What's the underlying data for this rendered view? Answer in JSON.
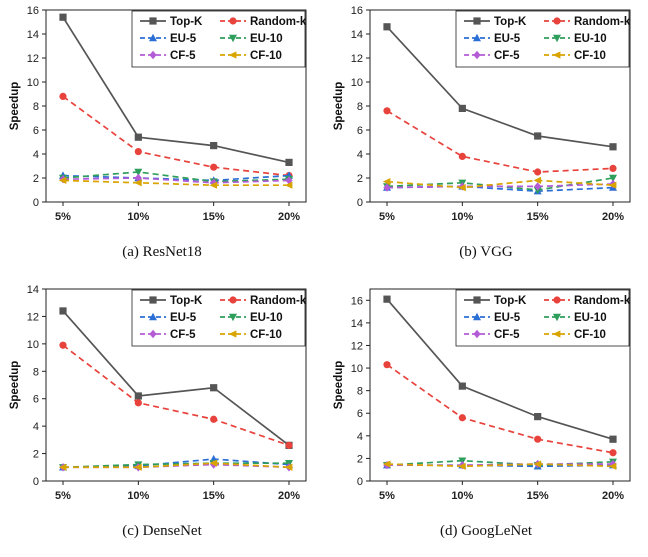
{
  "figure": {
    "captions": [
      "(a) ResNet18",
      "(b) VGG",
      "(c) DenseNet",
      "(d) GoogLeNet"
    ]
  },
  "chart_data": [
    {
      "type": "line",
      "caption": "(a) ResNet18",
      "categories": [
        "5%",
        "10%",
        "15%",
        "20%"
      ],
      "ylabel": "Speedup",
      "ylim": [
        0,
        16
      ],
      "yticks": [
        0,
        2,
        4,
        6,
        8,
        10,
        12,
        14,
        16
      ],
      "legend_position": "top-right",
      "series": [
        {
          "name": "Top-K",
          "values": [
            15.4,
            5.4,
            4.7,
            3.3
          ],
          "color": "#555555",
          "dash": "solid",
          "marker": "square"
        },
        {
          "name": "Random-k",
          "values": [
            8.8,
            4.2,
            2.9,
            2.2
          ],
          "color": "#e8423c",
          "dash": "dash",
          "marker": "circle"
        },
        {
          "name": "EU-5",
          "values": [
            2.2,
            2.0,
            1.8,
            2.2
          ],
          "color": "#2b6fd6",
          "dash": "dash",
          "marker": "triangle-up"
        },
        {
          "name": "EU-10",
          "values": [
            2.0,
            2.5,
            1.7,
            1.9
          ],
          "color": "#2e9e5b",
          "dash": "dash",
          "marker": "triangle-down"
        },
        {
          "name": "CF-5",
          "values": [
            1.9,
            2.0,
            1.6,
            1.8
          ],
          "color": "#b45bd6",
          "dash": "dash",
          "marker": "diamond"
        },
        {
          "name": "CF-10",
          "values": [
            1.8,
            1.6,
            1.4,
            1.4
          ],
          "color": "#d9a400",
          "dash": "dash",
          "marker": "triangle-left"
        }
      ]
    },
    {
      "type": "line",
      "caption": "(b) VGG",
      "categories": [
        "5%",
        "10%",
        "15%",
        "20%"
      ],
      "ylabel": "Speedup",
      "ylim": [
        0,
        16
      ],
      "yticks": [
        0,
        2,
        4,
        6,
        8,
        10,
        12,
        14,
        16
      ],
      "legend_position": "top-right",
      "series": [
        {
          "name": "Top-K",
          "values": [
            14.6,
            7.8,
            5.5,
            4.6
          ],
          "color": "#555555",
          "dash": "solid",
          "marker": "square"
        },
        {
          "name": "Random-k",
          "values": [
            7.6,
            3.8,
            2.5,
            2.8
          ],
          "color": "#e8423c",
          "dash": "dash",
          "marker": "circle"
        },
        {
          "name": "EU-5",
          "values": [
            1.2,
            1.3,
            0.9,
            1.2
          ],
          "color": "#2b6fd6",
          "dash": "dash",
          "marker": "triangle-up"
        },
        {
          "name": "EU-10",
          "values": [
            1.3,
            1.6,
            1.0,
            2.0
          ],
          "color": "#2e9e5b",
          "dash": "dash",
          "marker": "triangle-down"
        },
        {
          "name": "CF-5",
          "values": [
            1.2,
            1.3,
            1.3,
            1.5
          ],
          "color": "#b45bd6",
          "dash": "dash",
          "marker": "diamond"
        },
        {
          "name": "CF-10",
          "values": [
            1.7,
            1.2,
            1.8,
            1.4
          ],
          "color": "#d9a400",
          "dash": "dash",
          "marker": "triangle-left"
        }
      ]
    },
    {
      "type": "line",
      "caption": "(c) DenseNet",
      "categories": [
        "5%",
        "10%",
        "15%",
        "20%"
      ],
      "ylabel": "Speedup",
      "ylim": [
        0,
        14
      ],
      "yticks": [
        0,
        2,
        4,
        6,
        8,
        10,
        12,
        14
      ],
      "legend_position": "top-right",
      "series": [
        {
          "name": "Top-K",
          "values": [
            12.4,
            6.2,
            6.8,
            2.6
          ],
          "color": "#555555",
          "dash": "solid",
          "marker": "square"
        },
        {
          "name": "Random-k",
          "values": [
            9.9,
            5.7,
            4.5,
            2.6
          ],
          "color": "#e8423c",
          "dash": "dash",
          "marker": "circle"
        },
        {
          "name": "EU-5",
          "values": [
            1.0,
            1.1,
            1.6,
            1.2
          ],
          "color": "#2b6fd6",
          "dash": "dash",
          "marker": "triangle-up"
        },
        {
          "name": "EU-10",
          "values": [
            1.0,
            1.2,
            1.3,
            1.3
          ],
          "color": "#2e9e5b",
          "dash": "dash",
          "marker": "triangle-down"
        },
        {
          "name": "CF-5",
          "values": [
            1.0,
            1.0,
            1.2,
            1.0
          ],
          "color": "#b45bd6",
          "dash": "dash",
          "marker": "diamond"
        },
        {
          "name": "CF-10",
          "values": [
            1.0,
            1.0,
            1.3,
            1.0
          ],
          "color": "#d9a400",
          "dash": "dash",
          "marker": "triangle-left"
        }
      ]
    },
    {
      "type": "line",
      "caption": "(d) GoogLeNet",
      "categories": [
        "5%",
        "10%",
        "15%",
        "20%"
      ],
      "ylabel": "Speedup",
      "ylim": [
        0,
        17
      ],
      "yticks": [
        0,
        2,
        4,
        6,
        8,
        10,
        12,
        14,
        16
      ],
      "legend_position": "top-right",
      "series": [
        {
          "name": "Top-K",
          "values": [
            16.1,
            8.4,
            5.7,
            3.7
          ],
          "color": "#555555",
          "dash": "solid",
          "marker": "square"
        },
        {
          "name": "Random-k",
          "values": [
            10.3,
            5.6,
            3.7,
            2.5
          ],
          "color": "#e8423c",
          "dash": "dash",
          "marker": "circle"
        },
        {
          "name": "EU-5",
          "values": [
            1.4,
            1.4,
            1.3,
            1.4
          ],
          "color": "#2b6fd6",
          "dash": "dash",
          "marker": "triangle-up"
        },
        {
          "name": "EU-10",
          "values": [
            1.4,
            1.8,
            1.4,
            1.7
          ],
          "color": "#2e9e5b",
          "dash": "dash",
          "marker": "triangle-down"
        },
        {
          "name": "CF-5",
          "values": [
            1.4,
            1.4,
            1.5,
            1.5
          ],
          "color": "#b45bd6",
          "dash": "dash",
          "marker": "diamond"
        },
        {
          "name": "CF-10",
          "values": [
            1.5,
            1.3,
            1.5,
            1.3
          ],
          "color": "#d9a400",
          "dash": "dash",
          "marker": "triangle-left"
        }
      ]
    }
  ]
}
